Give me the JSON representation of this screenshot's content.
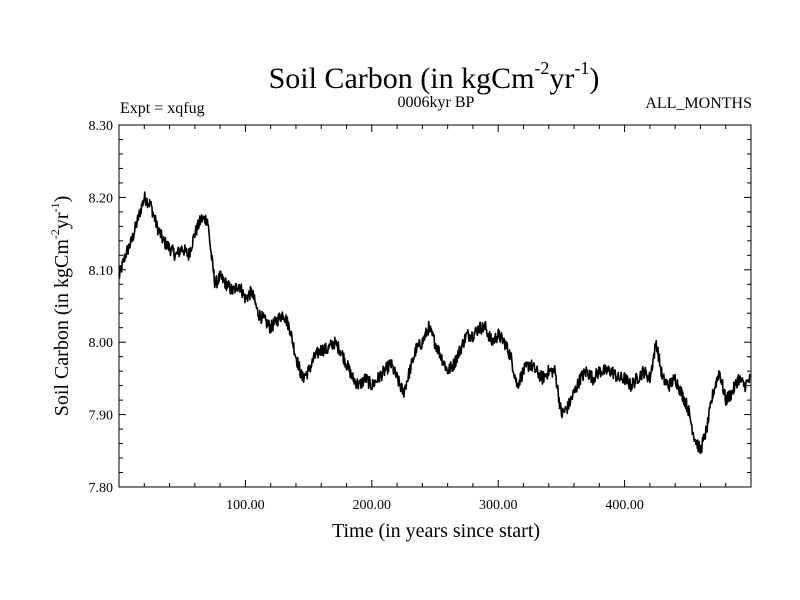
{
  "colors": {
    "line": "#000000",
    "background": "#ffffff"
  },
  "chart_data": {
    "type": "line",
    "title_main": "Soil Carbon (in kgCm",
    "title_sup1": "-2",
    "title_mid": "yr",
    "title_sup2": "-1",
    "title_end": ")",
    "subtitle_left": "Expt = xqfug",
    "subtitle_center": "0006kyr BP",
    "subtitle_right": "ALL_MONTHS",
    "xlabel": "Time (in years since start)",
    "ylabel_main": "Soil Carbon (in kgCm",
    "ylabel_sup1": "-2",
    "ylabel_mid": "yr",
    "ylabel_sup2": "-1",
    "ylabel_end": ")",
    "xlim": [
      0,
      500
    ],
    "ylim": [
      7.8,
      8.3
    ],
    "xticks": [
      100,
      200,
      300,
      400
    ],
    "xtick_labels": [
      "100.00",
      "200.00",
      "300.00",
      "400.00"
    ],
    "yticks": [
      7.8,
      7.9,
      8.0,
      8.1,
      8.2,
      8.3
    ],
    "ytick_labels": [
      "7.80",
      "7.90",
      "8.00",
      "8.10",
      "8.20",
      "8.30"
    ],
    "noise_amplitude": 0.009,
    "series": [
      {
        "name": "Soil Carbon",
        "x": [
          0,
          5,
          10,
          15,
          20,
          25,
          30,
          35,
          40,
          45,
          50,
          55,
          60,
          65,
          70,
          73,
          76,
          80,
          85,
          90,
          95,
          100,
          105,
          110,
          115,
          120,
          125,
          130,
          135,
          140,
          145,
          150,
          155,
          160,
          165,
          170,
          175,
          180,
          185,
          190,
          195,
          200,
          205,
          210,
          215,
          220,
          225,
          230,
          235,
          240,
          245,
          250,
          255,
          260,
          265,
          270,
          275,
          280,
          285,
          290,
          295,
          300,
          305,
          310,
          315,
          320,
          325,
          330,
          335,
          340,
          345,
          350,
          355,
          360,
          365,
          370,
          375,
          380,
          385,
          390,
          395,
          400,
          405,
          410,
          415,
          420,
          425,
          430,
          435,
          440,
          445,
          450,
          455,
          460,
          465,
          470,
          475,
          480,
          485,
          490,
          495,
          500
        ],
        "values": [
          8.09,
          8.12,
          8.14,
          8.17,
          8.2,
          8.19,
          8.16,
          8.14,
          8.13,
          8.12,
          8.13,
          8.12,
          8.15,
          8.17,
          8.17,
          8.12,
          8.08,
          8.09,
          8.08,
          8.07,
          8.08,
          8.06,
          8.07,
          8.04,
          8.03,
          8.02,
          8.03,
          8.04,
          8.02,
          7.98,
          7.95,
          7.96,
          7.98,
          7.99,
          7.99,
          8.0,
          7.99,
          7.97,
          7.95,
          7.94,
          7.95,
          7.94,
          7.95,
          7.96,
          7.97,
          7.95,
          7.93,
          7.96,
          7.99,
          8.0,
          8.02,
          8.0,
          7.98,
          7.96,
          7.97,
          7.99,
          8.01,
          8.01,
          8.02,
          8.02,
          8.0,
          8.01,
          8.0,
          7.98,
          7.94,
          7.96,
          7.97,
          7.96,
          7.95,
          7.96,
          7.96,
          7.9,
          7.91,
          7.93,
          7.95,
          7.96,
          7.95,
          7.96,
          7.96,
          7.96,
          7.95,
          7.95,
          7.94,
          7.95,
          7.96,
          7.95,
          8.0,
          7.95,
          7.94,
          7.95,
          7.93,
          7.91,
          7.87,
          7.85,
          7.88,
          7.93,
          7.96,
          7.92,
          7.93,
          7.95,
          7.94,
          7.95
        ]
      }
    ]
  }
}
